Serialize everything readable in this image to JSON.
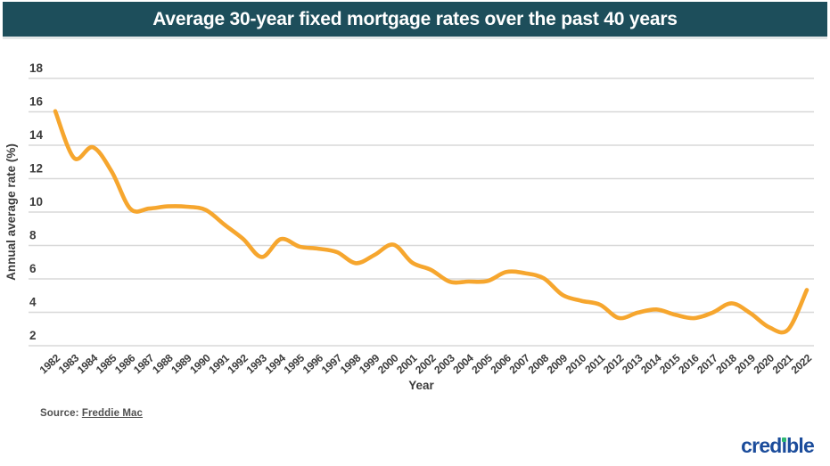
{
  "header": {
    "title": "Average 30-year fixed mortgage rates over the past 40 years",
    "bg_color": "#1d4e5b",
    "text_color": "#ffffff"
  },
  "chart_data": {
    "type": "line",
    "title": "Average 30-year fixed mortgage rates over the past 40 years",
    "xlabel": "Year",
    "ylabel": "Annual average rate (%)",
    "x": [
      1982,
      1983,
      1984,
      1985,
      1986,
      1987,
      1988,
      1989,
      1990,
      1991,
      1992,
      1993,
      1994,
      1995,
      1996,
      1997,
      1998,
      1999,
      2000,
      2001,
      2002,
      2003,
      2004,
      2005,
      2006,
      2007,
      2008,
      2009,
      2010,
      2011,
      2012,
      2013,
      2014,
      2015,
      2016,
      2017,
      2018,
      2019,
      2020,
      2021,
      2022
    ],
    "values": [
      16.04,
      13.24,
      13.88,
      12.43,
      10.19,
      10.21,
      10.34,
      10.32,
      10.13,
      9.25,
      8.39,
      7.31,
      8.38,
      7.93,
      7.81,
      7.6,
      6.94,
      7.44,
      8.05,
      6.97,
      6.54,
      5.83,
      5.84,
      5.87,
      6.41,
      6.34,
      6.03,
      5.04,
      4.69,
      4.45,
      3.66,
      3.98,
      4.17,
      3.85,
      3.65,
      3.99,
      4.54,
      3.94,
      3.1,
      2.96,
      5.34
    ],
    "ylim": [
      2,
      18
    ],
    "ytick_step": 2,
    "yticks": [
      2,
      4,
      6,
      8,
      10,
      12,
      14,
      16,
      18
    ],
    "grid": true,
    "legend": "none",
    "line_color": "#f6a62e",
    "gridline_color": "#d8d8d8",
    "tick_label_color": "#3c3c3c"
  },
  "footer": {
    "source_prefix": "Source:",
    "source_link": "Freddie Mac",
    "logo_text": "credible",
    "logo_color": "#1b4c9b",
    "logo_dot_color": "#2eb873"
  }
}
